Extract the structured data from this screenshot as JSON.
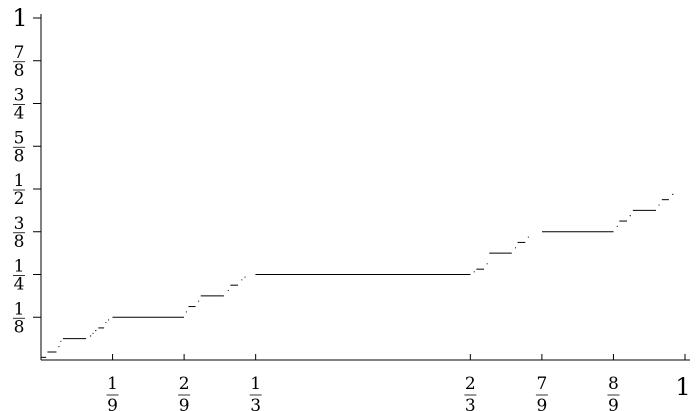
{
  "chart_data": {
    "type": "line",
    "title": "",
    "xlabel": "",
    "ylabel": "",
    "xlim": [
      0,
      1
    ],
    "ylim": [
      0,
      1
    ],
    "grid": false,
    "x_ticks": [
      {
        "value": 0.111111,
        "label_type": "fraction",
        "num": "1",
        "den": "9"
      },
      {
        "value": 0.222222,
        "label_type": "fraction",
        "num": "2",
        "den": "9"
      },
      {
        "value": 0.333333,
        "label_type": "fraction",
        "num": "1",
        "den": "3"
      },
      {
        "value": 0.666667,
        "label_type": "fraction",
        "num": "2",
        "den": "3"
      },
      {
        "value": 0.777778,
        "label_type": "fraction",
        "num": "7",
        "den": "9"
      },
      {
        "value": 0.888889,
        "label_type": "fraction",
        "num": "8",
        "den": "9"
      },
      {
        "value": 1,
        "label_type": "plain",
        "text": "1"
      }
    ],
    "y_ticks": [
      {
        "value": 0.125,
        "label_type": "fraction",
        "num": "1",
        "den": "8"
      },
      {
        "value": 0.25,
        "label_type": "fraction",
        "num": "1",
        "den": "4"
      },
      {
        "value": 0.375,
        "label_type": "fraction",
        "num": "3",
        "den": "8"
      },
      {
        "value": 0.5,
        "label_type": "fraction",
        "num": "1",
        "den": "2"
      },
      {
        "value": 0.625,
        "label_type": "fraction",
        "num": "5",
        "den": "8"
      },
      {
        "value": 0.75,
        "label_type": "fraction",
        "num": "3",
        "den": "4"
      },
      {
        "value": 0.875,
        "label_type": "fraction",
        "num": "7",
        "den": "8"
      },
      {
        "value": 1,
        "label_type": "plain",
        "text": "1"
      }
    ],
    "series": [
      {
        "style": "step",
        "color": "#000000",
        "segments": [
          [
            0.0,
            0.008,
            0.0078
          ],
          [
            0.01,
            0.024,
            0.0234
          ],
          [
            0.027,
            0.028,
            0.0391
          ],
          [
            0.03,
            0.031,
            0.0547
          ],
          [
            0.034,
            0.07,
            0.0625
          ],
          [
            0.076,
            0.078,
            0.0703
          ],
          [
            0.08,
            0.081,
            0.0781
          ],
          [
            0.084,
            0.086,
            0.0859
          ],
          [
            0.089,
            0.098,
            0.0938
          ],
          [
            0.1,
            0.101,
            0.1094
          ],
          [
            0.104,
            0.105,
            0.1172
          ],
          [
            0.111,
            0.222,
            0.125
          ],
          [
            0.225,
            0.226,
            0.1406
          ],
          [
            0.229,
            0.24,
            0.1563
          ],
          [
            0.244,
            0.245,
            0.1719
          ],
          [
            0.248,
            0.284,
            0.1875
          ],
          [
            0.29,
            0.291,
            0.2031
          ],
          [
            0.294,
            0.306,
            0.2188
          ],
          [
            0.311,
            0.312,
            0.2344
          ],
          [
            0.316,
            0.317,
            0.2422
          ],
          [
            0.333,
            0.667,
            0.25
          ],
          [
            0.672,
            0.673,
            0.2578
          ],
          [
            0.676,
            0.688,
            0.2656
          ],
          [
            0.692,
            0.693,
            0.2813
          ],
          [
            0.696,
            0.731,
            0.3125
          ],
          [
            0.736,
            0.737,
            0.3281
          ],
          [
            0.74,
            0.752,
            0.3438
          ],
          [
            0.756,
            0.757,
            0.3594
          ],
          [
            0.778,
            0.889,
            0.375
          ],
          [
            0.894,
            0.895,
            0.3906
          ],
          [
            0.898,
            0.91,
            0.4063
          ],
          [
            0.914,
            0.916,
            0.4219
          ],
          [
            0.919,
            0.955,
            0.4375
          ],
          [
            0.959,
            0.96,
            0.4531
          ],
          [
            0.964,
            0.975,
            0.4688
          ],
          [
            0.98,
            0.982,
            0.4844
          ]
        ]
      }
    ]
  }
}
